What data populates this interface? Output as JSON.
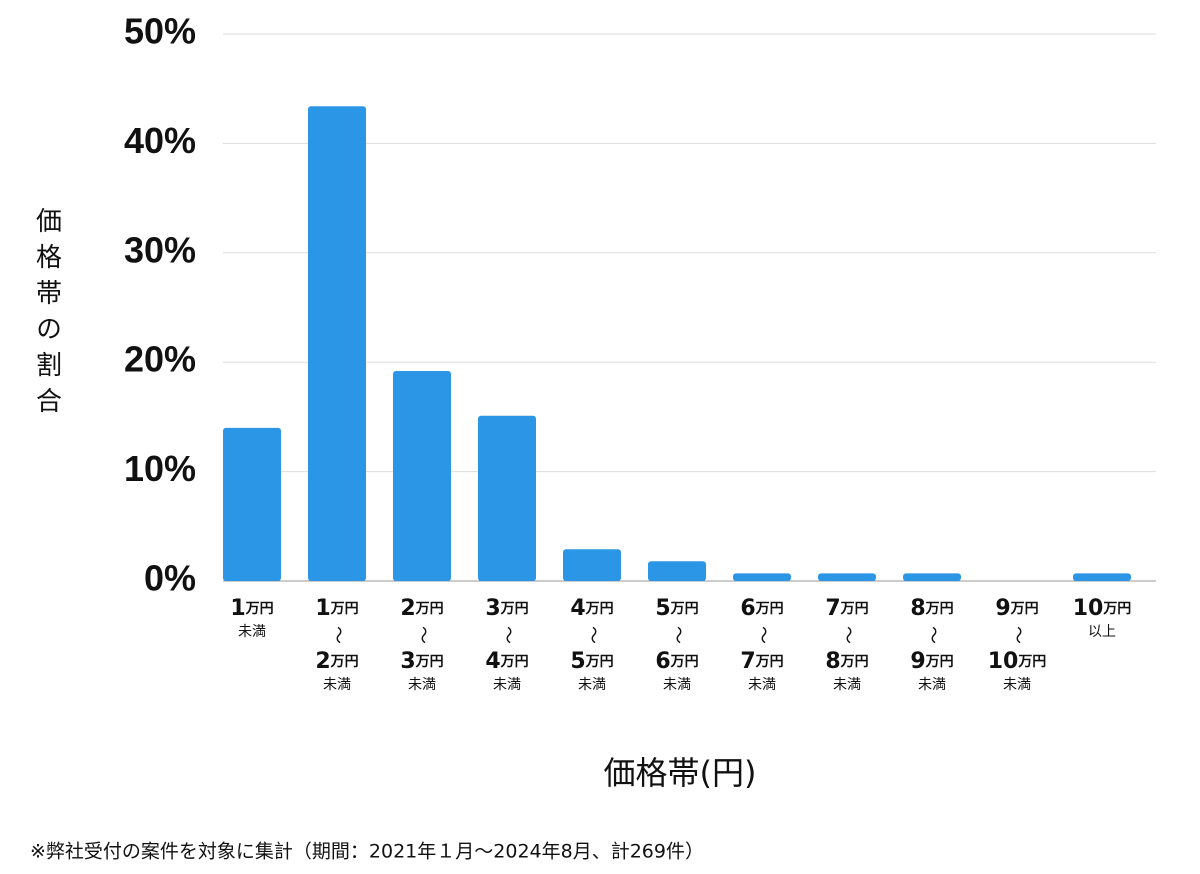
{
  "chart_data": {
    "type": "bar",
    "y_label": "価格帯の割合",
    "x_label": "価格帯(円)",
    "note": "※弊社受付の案件を対象に集計（期間：2021年１月〜2024年8月、計269件）",
    "categories": [
      [
        "1万円",
        "未満"
      ],
      [
        "1万円",
        "〜",
        "2万円",
        "未満"
      ],
      [
        "2万円",
        "〜",
        "3万円",
        "未満"
      ],
      [
        "3万円",
        "〜",
        "4万円",
        "未満"
      ],
      [
        "4万円",
        "〜",
        "5万円",
        "未満"
      ],
      [
        "5万円",
        "〜",
        "6万円",
        "未満"
      ],
      [
        "6万円",
        "〜",
        "7万円",
        "未満"
      ],
      [
        "7万円",
        "〜",
        "8万円",
        "未満"
      ],
      [
        "8万円",
        "〜",
        "9万円",
        "未満"
      ],
      [
        "9万円",
        "〜",
        "10万円",
        "未満"
      ],
      [
        "10万円",
        "以上"
      ]
    ],
    "values": [
      14.0,
      43.4,
      19.2,
      15.1,
      2.9,
      1.8,
      0.7,
      0.7,
      0.7,
      0,
      0.7
    ],
    "color": "#2b95e6",
    "ylim": [
      0,
      50
    ],
    "yticks": [
      {
        "value": 0,
        "label": "0%"
      },
      {
        "value": 10,
        "label": "10%"
      },
      {
        "value": 20,
        "label": "20%"
      },
      {
        "value": 30,
        "label": "30%"
      },
      {
        "value": 40,
        "label": "40%"
      },
      {
        "value": 50,
        "label": "50%"
      }
    ],
    "grid": true
  }
}
